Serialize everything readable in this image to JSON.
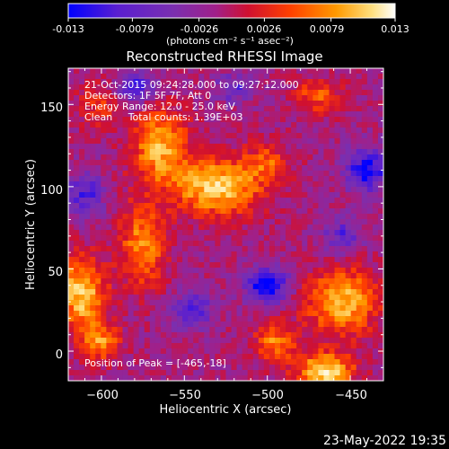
{
  "colorbar": {
    "ticks": [
      "-0.013",
      "-0.0079",
      "-0.0026",
      "0.0026",
      "0.0079",
      "0.013"
    ],
    "tick_values": [
      -0.013,
      -0.0079,
      -0.0026,
      0.0026,
      0.0079,
      0.013
    ],
    "range": [
      -0.013,
      0.013
    ],
    "units_label": "(photons cm⁻² s⁻¹ asec⁻²)",
    "colors": [
      "#0000ff",
      "#5a1fd0",
      "#7a2fb0",
      "#a0208a",
      "#d01030",
      "#ff4000",
      "#ff9a00",
      "#ffe080",
      "#ffffff"
    ]
  },
  "title": "Reconstructed RHESSI Image",
  "annotations": {
    "line1": "21-Oct-2015 09:24:28.000 to 09:27:12.000",
    "line2": "Detectors: 1F 5F 7F, Att 0",
    "line3": "Energy Range: 12.0 - 25.0 keV",
    "line4": "Clean     Total counts: 1.39E+03",
    "peak": "Position of Peak = [-465,-18]"
  },
  "footer": {
    "timestamp": "23-May-2022 19:35"
  },
  "chart_data": {
    "type": "heatmap",
    "title": "Reconstructed RHESSI Image",
    "xlabel": "Heliocentric X (arcsec)",
    "ylabel": "Heliocentric Y (arcsec)",
    "xlim": [
      -620,
      -430
    ],
    "ylim": [
      -18,
      172
    ],
    "x_ticks": [
      -600,
      -550,
      -500,
      -450
    ],
    "y_ticks": [
      0,
      50,
      100,
      150
    ],
    "x_tick_labels": [
      "−600",
      "−550",
      "−500",
      "−450"
    ],
    "y_tick_labels": [
      "0",
      "50",
      "100",
      "150"
    ],
    "value_range": [
      -0.013,
      0.013
    ],
    "peak_position": [
      -465,
      -18
    ],
    "grid": false,
    "sources": [
      {
        "x": -530,
        "y": 100,
        "sigma_x": 18,
        "sigma_y": 12,
        "peak": 0.0125
      },
      {
        "x": -565,
        "y": 125,
        "sigma_x": 12,
        "sigma_y": 16,
        "peak": 0.0105
      },
      {
        "x": -575,
        "y": 65,
        "sigma_x": 10,
        "sigma_y": 18,
        "peak": 0.009
      },
      {
        "x": -612,
        "y": 35,
        "sigma_x": 10,
        "sigma_y": 16,
        "peak": 0.012
      },
      {
        "x": -600,
        "y": 5,
        "sigma_x": 8,
        "sigma_y": 8,
        "peak": 0.0085
      },
      {
        "x": -455,
        "y": 30,
        "sigma_x": 15,
        "sigma_y": 14,
        "peak": 0.0115
      },
      {
        "x": -465,
        "y": -12,
        "sigma_x": 12,
        "sigma_y": 8,
        "peak": 0.013
      },
      {
        "x": -495,
        "y": 5,
        "sigma_x": 9,
        "sigma_y": 8,
        "peak": 0.0085
      },
      {
        "x": -500,
        "y": 115,
        "sigma_x": 10,
        "sigma_y": 8,
        "peak": 0.006
      },
      {
        "x": -470,
        "y": 155,
        "sigma_x": 10,
        "sigma_y": 8,
        "peak": 0.0065
      },
      {
        "x": -600,
        "y": 150,
        "sigma_x": 10,
        "sigma_y": 10,
        "peak": 0.005
      },
      {
        "x": -500,
        "y": 40,
        "sigma_x": 9,
        "sigma_y": 7,
        "peak": -0.012
      },
      {
        "x": -440,
        "y": 110,
        "sigma_x": 9,
        "sigma_y": 9,
        "peak": -0.01
      },
      {
        "x": -580,
        "y": 160,
        "sigma_x": 8,
        "sigma_y": 7,
        "peak": -0.009
      },
      {
        "x": -545,
        "y": 25,
        "sigma_x": 8,
        "sigma_y": 8,
        "peak": -0.008
      },
      {
        "x": -610,
        "y": 95,
        "sigma_x": 8,
        "sigma_y": 10,
        "peak": -0.007
      },
      {
        "x": -520,
        "y": 160,
        "sigma_x": 8,
        "sigma_y": 6,
        "peak": -0.006
      },
      {
        "x": -455,
        "y": 70,
        "sigma_x": 8,
        "sigma_y": 8,
        "peak": -0.006
      }
    ],
    "background": -0.003
  }
}
